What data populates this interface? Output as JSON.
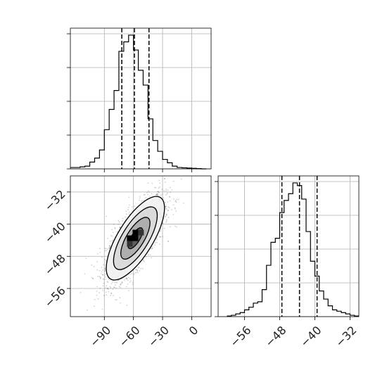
{
  "chart_data": [
    {
      "type": "histogram",
      "panel": "top-left",
      "variable_index": 0,
      "x_range": [
        -125,
        20
      ],
      "x_ticks": [
        -90,
        -60,
        -30,
        0
      ],
      "y_range": [
        0,
        1.0
      ],
      "y_ticks": [
        0.0,
        0.25,
        0.5,
        0.75,
        1.0
      ],
      "bin_edges": [
        -125,
        -115,
        -110,
        -105,
        -100,
        -95,
        -90,
        -85,
        -80,
        -75,
        -70,
        -65,
        -60,
        -55,
        -50,
        -45,
        -40,
        -35,
        -30,
        -25,
        -20,
        -15,
        -10,
        -5,
        0,
        5,
        10,
        15
      ],
      "counts": [
        0.01,
        0.015,
        0.02,
        0.05,
        0.08,
        0.14,
        0.29,
        0.44,
        0.58,
        0.87,
        0.94,
        0.99,
        0.88,
        0.73,
        0.62,
        0.37,
        0.21,
        0.13,
        0.07,
        0.045,
        0.02,
        0.01,
        0.008,
        0.006,
        0.004,
        0.002,
        0.0
      ],
      "quantiles": [
        -72,
        -59,
        -44
      ],
      "grid": true,
      "title": "",
      "xlabel": "",
      "ylabel": ""
    },
    {
      "type": "scatter-density",
      "panel": "bottom-left",
      "x_range": [
        -125,
        20
      ],
      "y_range": [
        -63,
        -28
      ],
      "x_ticks": [
        -90,
        -60,
        -30,
        0
      ],
      "x_tick_labels": [
        "−90",
        "−60",
        "−30",
        "0"
      ],
      "y_ticks": [
        -32,
        -40,
        -48,
        -56
      ],
      "y_tick_labels": [
        "−32",
        "−40",
        "−48",
        "−56"
      ],
      "center": [
        -58,
        -43.5
      ],
      "spread": [
        15,
        5.2
      ],
      "correlation": 0.72,
      "n_points": 2200,
      "contour_levels": [
        {
          "sigma": 0.5,
          "fill": "#555555"
        },
        {
          "sigma": 1.0,
          "fill": "#a8a8a8"
        },
        {
          "sigma": 1.5,
          "fill": "#d8d8d8"
        },
        {
          "sigma": 2.0,
          "fill": "#f2f2f2"
        }
      ],
      "grid": true
    },
    {
      "type": "histogram",
      "panel": "bottom-right",
      "variable_index": 1,
      "x_range": [
        -62,
        -30
      ],
      "x_ticks": [
        -56,
        -48,
        -40,
        -32
      ],
      "x_tick_labels": [
        "−56",
        "−48",
        "−40",
        "−32"
      ],
      "y_range": [
        0,
        1.0
      ],
      "y_ticks": [
        0.0,
        0.25,
        0.5,
        0.75,
        1.0
      ],
      "bin_edges": [
        -60,
        -59,
        -58,
        -57,
        -56,
        -55,
        -54,
        -53,
        -52,
        -51,
        -50,
        -49,
        -48,
        -47,
        -46,
        -45,
        -44,
        -43,
        -42,
        -41,
        -40,
        -39,
        -38,
        -37,
        -36,
        -35,
        -34,
        -33,
        -32,
        -31,
        -30
      ],
      "counts": [
        0.005,
        0.01,
        0.02,
        0.03,
        0.05,
        0.07,
        0.1,
        0.11,
        0.2,
        0.38,
        0.55,
        0.58,
        0.77,
        0.86,
        0.91,
        0.99,
        0.97,
        0.87,
        0.63,
        0.41,
        0.3,
        0.19,
        0.13,
        0.08,
        0.05,
        0.04,
        0.03,
        0.02,
        0.01,
        0.005
      ],
      "quantiles": [
        -47.5,
        -43.5,
        -39.5
      ],
      "grid": true,
      "title": "",
      "xlabel": "",
      "ylabel": ""
    }
  ]
}
